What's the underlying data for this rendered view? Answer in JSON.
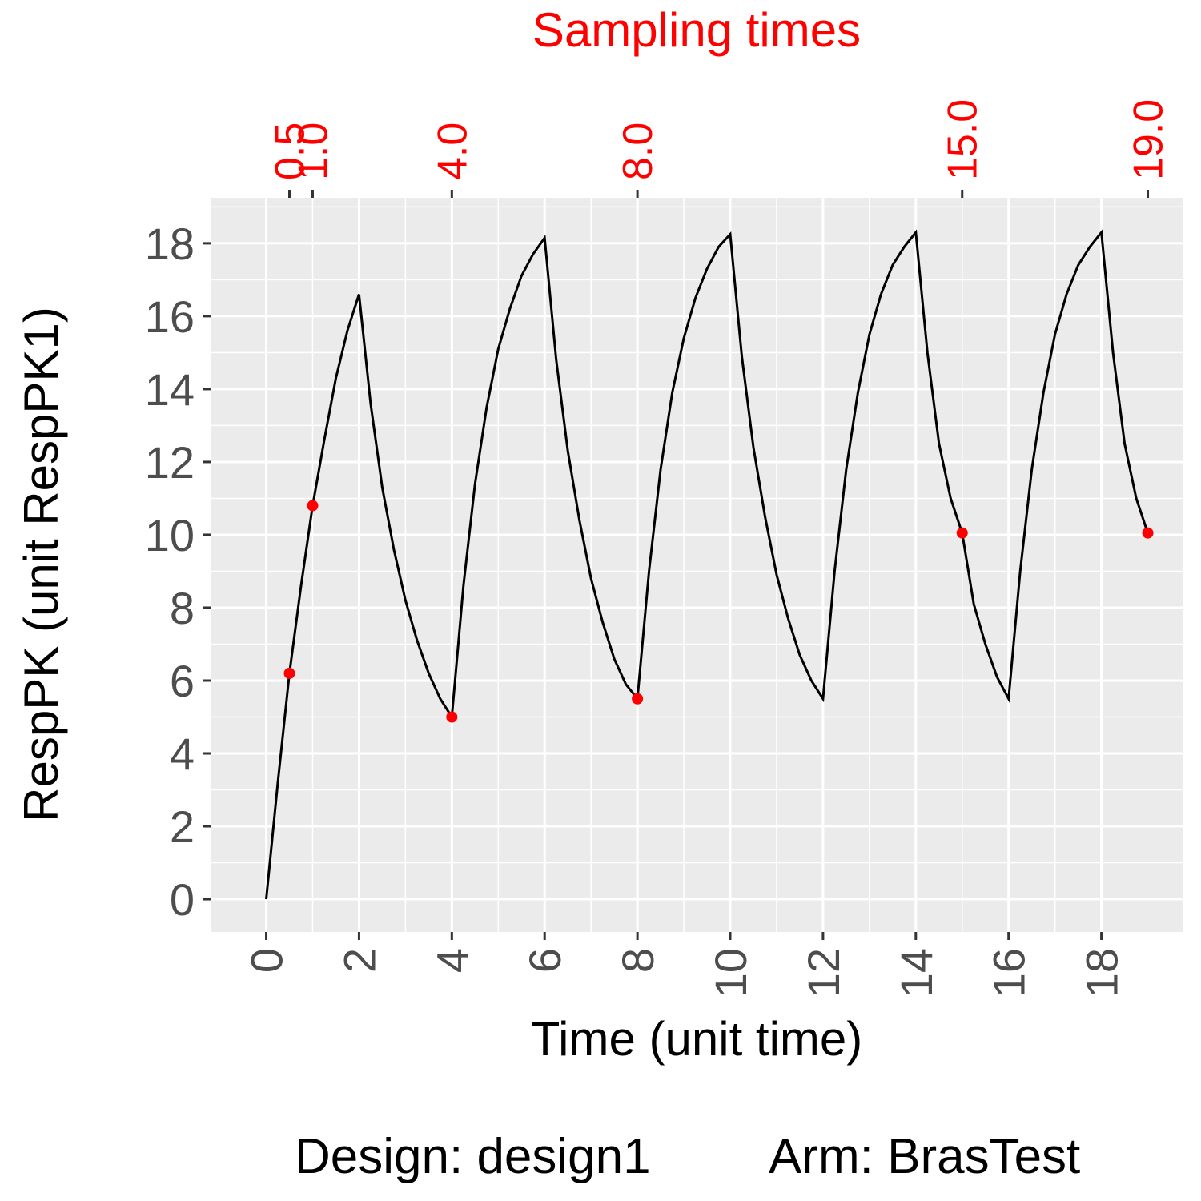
{
  "chart_data": {
    "type": "line",
    "title_top": "Sampling times",
    "xlabel": "Time (unit time)",
    "ylabel": "RespPK (unit RespPK1)",
    "xlim": [
      -1.2,
      19.75
    ],
    "ylim": [
      -0.9,
      19.25
    ],
    "x_ticks": [
      0,
      2,
      4,
      6,
      8,
      10,
      12,
      14,
      16,
      18
    ],
    "x_tick_labels": [
      "0",
      "2",
      "4",
      "6",
      "8",
      "10",
      "12",
      "14",
      "16",
      "18"
    ],
    "y_ticks": [
      0,
      2,
      4,
      6,
      8,
      10,
      12,
      14,
      16,
      18
    ],
    "y_tick_labels": [
      "0",
      "2",
      "4",
      "6",
      "8",
      "10",
      "12",
      "14",
      "16",
      "18"
    ],
    "sampling_time_ticks": [
      0.5,
      1.0,
      4.0,
      8.0,
      15.0,
      19.0
    ],
    "sampling_time_labels": [
      "0.5",
      "1.0",
      "4.0",
      "8.0",
      "15.0",
      "19.0"
    ],
    "grid": true,
    "colors": {
      "panel": "#ebebeb",
      "grid": "#ffffff",
      "line": "#000000",
      "points": "#ff0000",
      "top_axis": "#ff0000"
    },
    "series": [
      {
        "x": [
          0,
          0.25,
          0.5,
          0.75,
          1.0,
          1.25,
          1.5,
          1.75,
          2.0,
          2.25,
          2.5,
          2.75,
          3.0,
          3.25,
          3.5,
          3.75,
          4.0,
          4.25,
          4.5,
          4.75,
          5.0,
          5.25,
          5.5,
          5.75,
          6.0,
          6.25,
          6.5,
          6.75,
          7.0,
          7.25,
          7.5,
          7.75,
          8.0,
          8.25,
          8.5,
          8.75,
          9.0,
          9.25,
          9.5,
          9.75,
          10.0,
          10.25,
          10.5,
          10.75,
          11.0,
          11.25,
          11.5,
          11.75,
          12.0,
          12.25,
          12.5,
          12.75,
          13.0,
          13.25,
          13.5,
          13.75,
          14.0,
          14.25,
          14.5,
          14.75,
          15.0,
          15.25,
          15.5,
          15.75,
          16.0,
          16.25,
          16.5,
          16.75,
          17.0,
          17.25,
          17.5,
          17.75,
          18.0,
          18.25,
          18.5,
          18.75,
          19.0
        ],
        "y": [
          0,
          3.2,
          6.2,
          8.6,
          10.8,
          12.6,
          14.3,
          15.6,
          16.6,
          13.6,
          11.3,
          9.6,
          8.2,
          7.1,
          6.2,
          5.5,
          5.0,
          8.6,
          11.4,
          13.5,
          15.1,
          16.2,
          17.1,
          17.7,
          18.15,
          14.8,
          12.3,
          10.4,
          8.8,
          7.6,
          6.6,
          5.9,
          5.5,
          9.0,
          11.8,
          13.9,
          15.4,
          16.5,
          17.3,
          17.9,
          18.25,
          14.9,
          12.4,
          10.5,
          8.9,
          7.7,
          6.7,
          6.0,
          5.5,
          9.0,
          11.8,
          13.9,
          15.5,
          16.6,
          17.4,
          17.9,
          18.3,
          15.0,
          12.5,
          11.0,
          10.05,
          8.1,
          7.0,
          6.1,
          5.5,
          9.0,
          11.8,
          13.9,
          15.5,
          16.6,
          17.4,
          17.9,
          18.3,
          15.0,
          12.5,
          11.0,
          10.05
        ]
      }
    ],
    "sample_points": {
      "x": [
        0.5,
        1.0,
        4.0,
        8.0,
        15.0,
        19.0
      ],
      "y": [
        6.2,
        10.8,
        5.0,
        5.5,
        10.05,
        10.05
      ]
    }
  },
  "footer": {
    "design_label": "Design: design1",
    "arm_label": "Arm: BrasTest"
  }
}
